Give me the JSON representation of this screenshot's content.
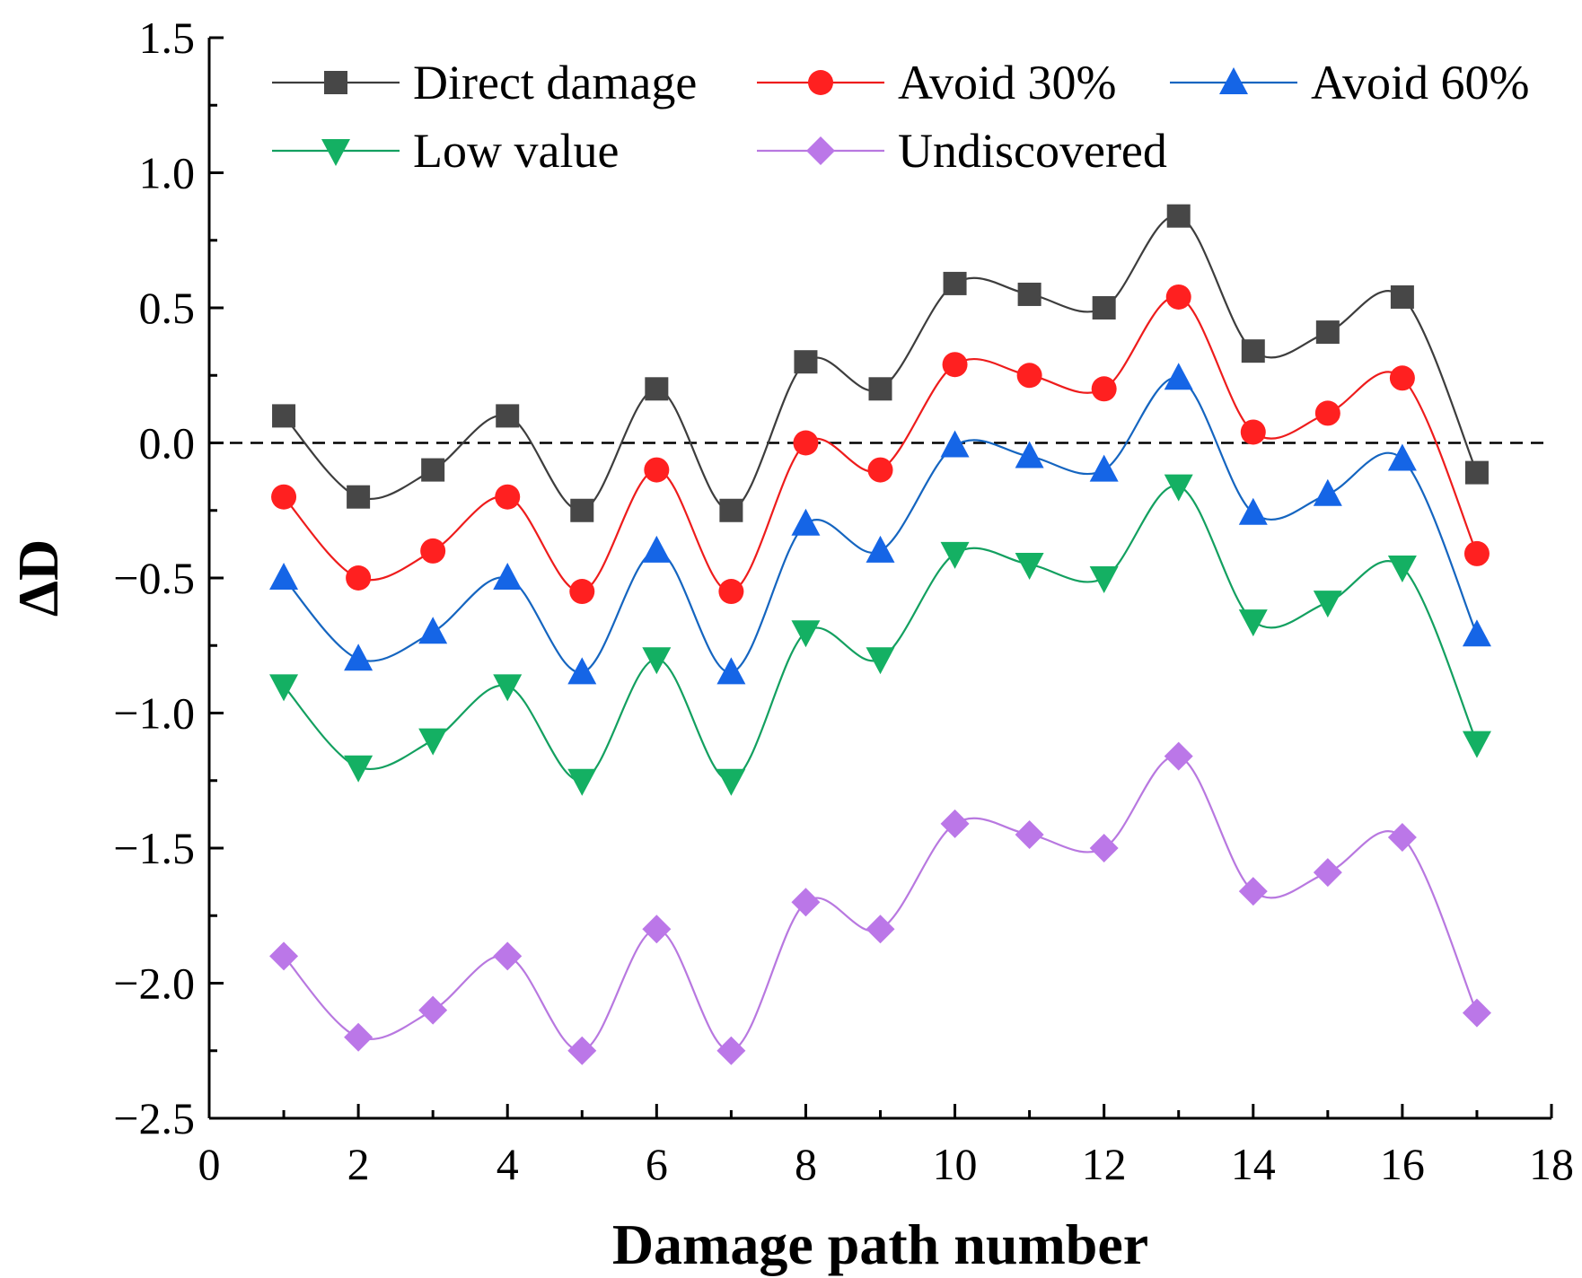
{
  "chart_data": {
    "type": "line",
    "title": "",
    "xlabel": "Damage path number",
    "ylabel": "ΔD",
    "xlim": [
      0,
      18
    ],
    "ylim": [
      -2.5,
      1.5
    ],
    "xticks": [
      0,
      2,
      4,
      6,
      8,
      10,
      12,
      14,
      16,
      18
    ],
    "xtick_labels": [
      "0",
      "2",
      "4",
      "6",
      "8",
      "10",
      "12",
      "14",
      "16",
      "18"
    ],
    "yticks": [
      -2.5,
      -2.0,
      -1.5,
      -1.0,
      -0.5,
      0.0,
      0.5,
      1.0,
      1.5
    ],
    "ytick_labels": [
      "−2.5",
      "−2.0",
      "−1.5",
      "−1.0",
      "−0.5",
      "0.0",
      "0.5",
      "1.0",
      "1.5"
    ],
    "reference_line": {
      "y": 0,
      "style": "dashed",
      "color": "#000000"
    },
    "smooth": true,
    "legend_position": "top",
    "x": [
      1,
      2,
      3,
      4,
      5,
      6,
      7,
      8,
      9,
      10,
      11,
      12,
      13,
      14,
      15,
      16,
      17
    ],
    "series": [
      {
        "name": "Direct damage",
        "line_color": "#3d3d3d",
        "marker_color": "#474747",
        "marker": "square",
        "values": [
          0.1,
          -0.2,
          -0.1,
          0.1,
          -0.25,
          0.2,
          -0.25,
          0.3,
          0.2,
          0.59,
          0.55,
          0.5,
          0.84,
          0.34,
          0.41,
          0.54,
          -0.11
        ]
      },
      {
        "name": "Avoid 30%",
        "line_color": "#ee1c1c",
        "marker_color": "#ff2020",
        "marker": "circle",
        "values": [
          -0.2,
          -0.5,
          -0.4,
          -0.2,
          -0.55,
          -0.1,
          -0.55,
          0.0,
          -0.1,
          0.29,
          0.25,
          0.2,
          0.54,
          0.04,
          0.11,
          0.24,
          -0.41
        ]
      },
      {
        "name": "Avoid 60%",
        "line_color": "#1565c0",
        "marker_color": "#1565e6",
        "marker": "triangle-up",
        "values": [
          -0.5,
          -0.8,
          -0.7,
          -0.5,
          -0.85,
          -0.4,
          -0.85,
          -0.3,
          -0.4,
          -0.01,
          -0.05,
          -0.1,
          0.24,
          -0.26,
          -0.19,
          -0.06,
          -0.71
        ]
      },
      {
        "name": "Low value",
        "line_color": "#13a060",
        "marker_color": "#14b063",
        "marker": "triangle-down",
        "values": [
          -0.9,
          -1.2,
          -1.1,
          -0.9,
          -1.25,
          -0.8,
          -1.25,
          -0.7,
          -0.8,
          -0.41,
          -0.45,
          -0.5,
          -0.16,
          -0.66,
          -0.59,
          -0.46,
          -1.11
        ]
      },
      {
        "name": "Undiscovered",
        "line_color": "#b878e0",
        "marker_color": "#bb77e8",
        "marker": "diamond",
        "values": [
          -1.9,
          -2.2,
          -2.1,
          -1.9,
          -2.25,
          -1.8,
          -2.25,
          -1.7,
          -1.8,
          -1.41,
          -1.45,
          -1.5,
          -1.16,
          -1.66,
          -1.59,
          -1.46,
          -2.11
        ]
      }
    ]
  }
}
